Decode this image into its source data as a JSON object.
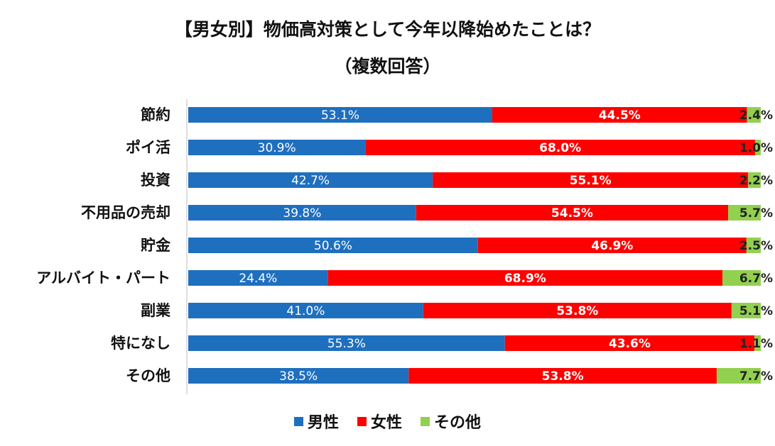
{
  "title_line1": "【男女別】物価高対策として今年以降始めたことは？",
  "title_line2": "（複数回答）",
  "chart_data": {
    "type": "bar",
    "orientation": "horizontal",
    "stacked": true,
    "normalized": true,
    "title": "【男女別】物価高対策として今年以降始めたことは？（複数回答）",
    "categories": [
      "節約",
      "ポイ活",
      "投資",
      "不用品の売却",
      "貯金",
      "アルバイト・パート",
      "副業",
      "特になし",
      "その他"
    ],
    "series": [
      {
        "name": "男性",
        "color": "#1f6fbf",
        "values": [
          53.1,
          30.9,
          42.7,
          39.8,
          50.6,
          24.4,
          41.0,
          55.3,
          38.5
        ],
        "labels": [
          "53.1%",
          "30.9%",
          "42.7%",
          "39.8%",
          "50.6%",
          "24.4%",
          "41.0%",
          "55.3%",
          "38.5%"
        ]
      },
      {
        "name": "女性",
        "color": "#ff0000",
        "values": [
          44.5,
          68.0,
          55.1,
          54.5,
          46.9,
          68.9,
          53.8,
          43.6,
          53.8
        ],
        "labels": [
          "44.5%",
          "68.0%",
          "55.1%",
          "54.5%",
          "46.9%",
          "68.9%",
          "53.8%",
          "43.6%",
          "53.8%"
        ]
      },
      {
        "name": "その他",
        "color": "#92d050",
        "values": [
          2.4,
          1.0,
          2.2,
          5.7,
          2.5,
          6.7,
          5.1,
          1.1,
          7.7
        ],
        "labels": [
          "2.4%",
          "1.0%",
          "2.2%",
          "5.7%",
          "2.5%",
          "6.7%",
          "5.1%",
          "1.1%",
          "7.7%"
        ]
      }
    ],
    "xlim": [
      0,
      100
    ],
    "legend": [
      "男性",
      "女性",
      "その他"
    ],
    "legend_position": "bottom"
  }
}
